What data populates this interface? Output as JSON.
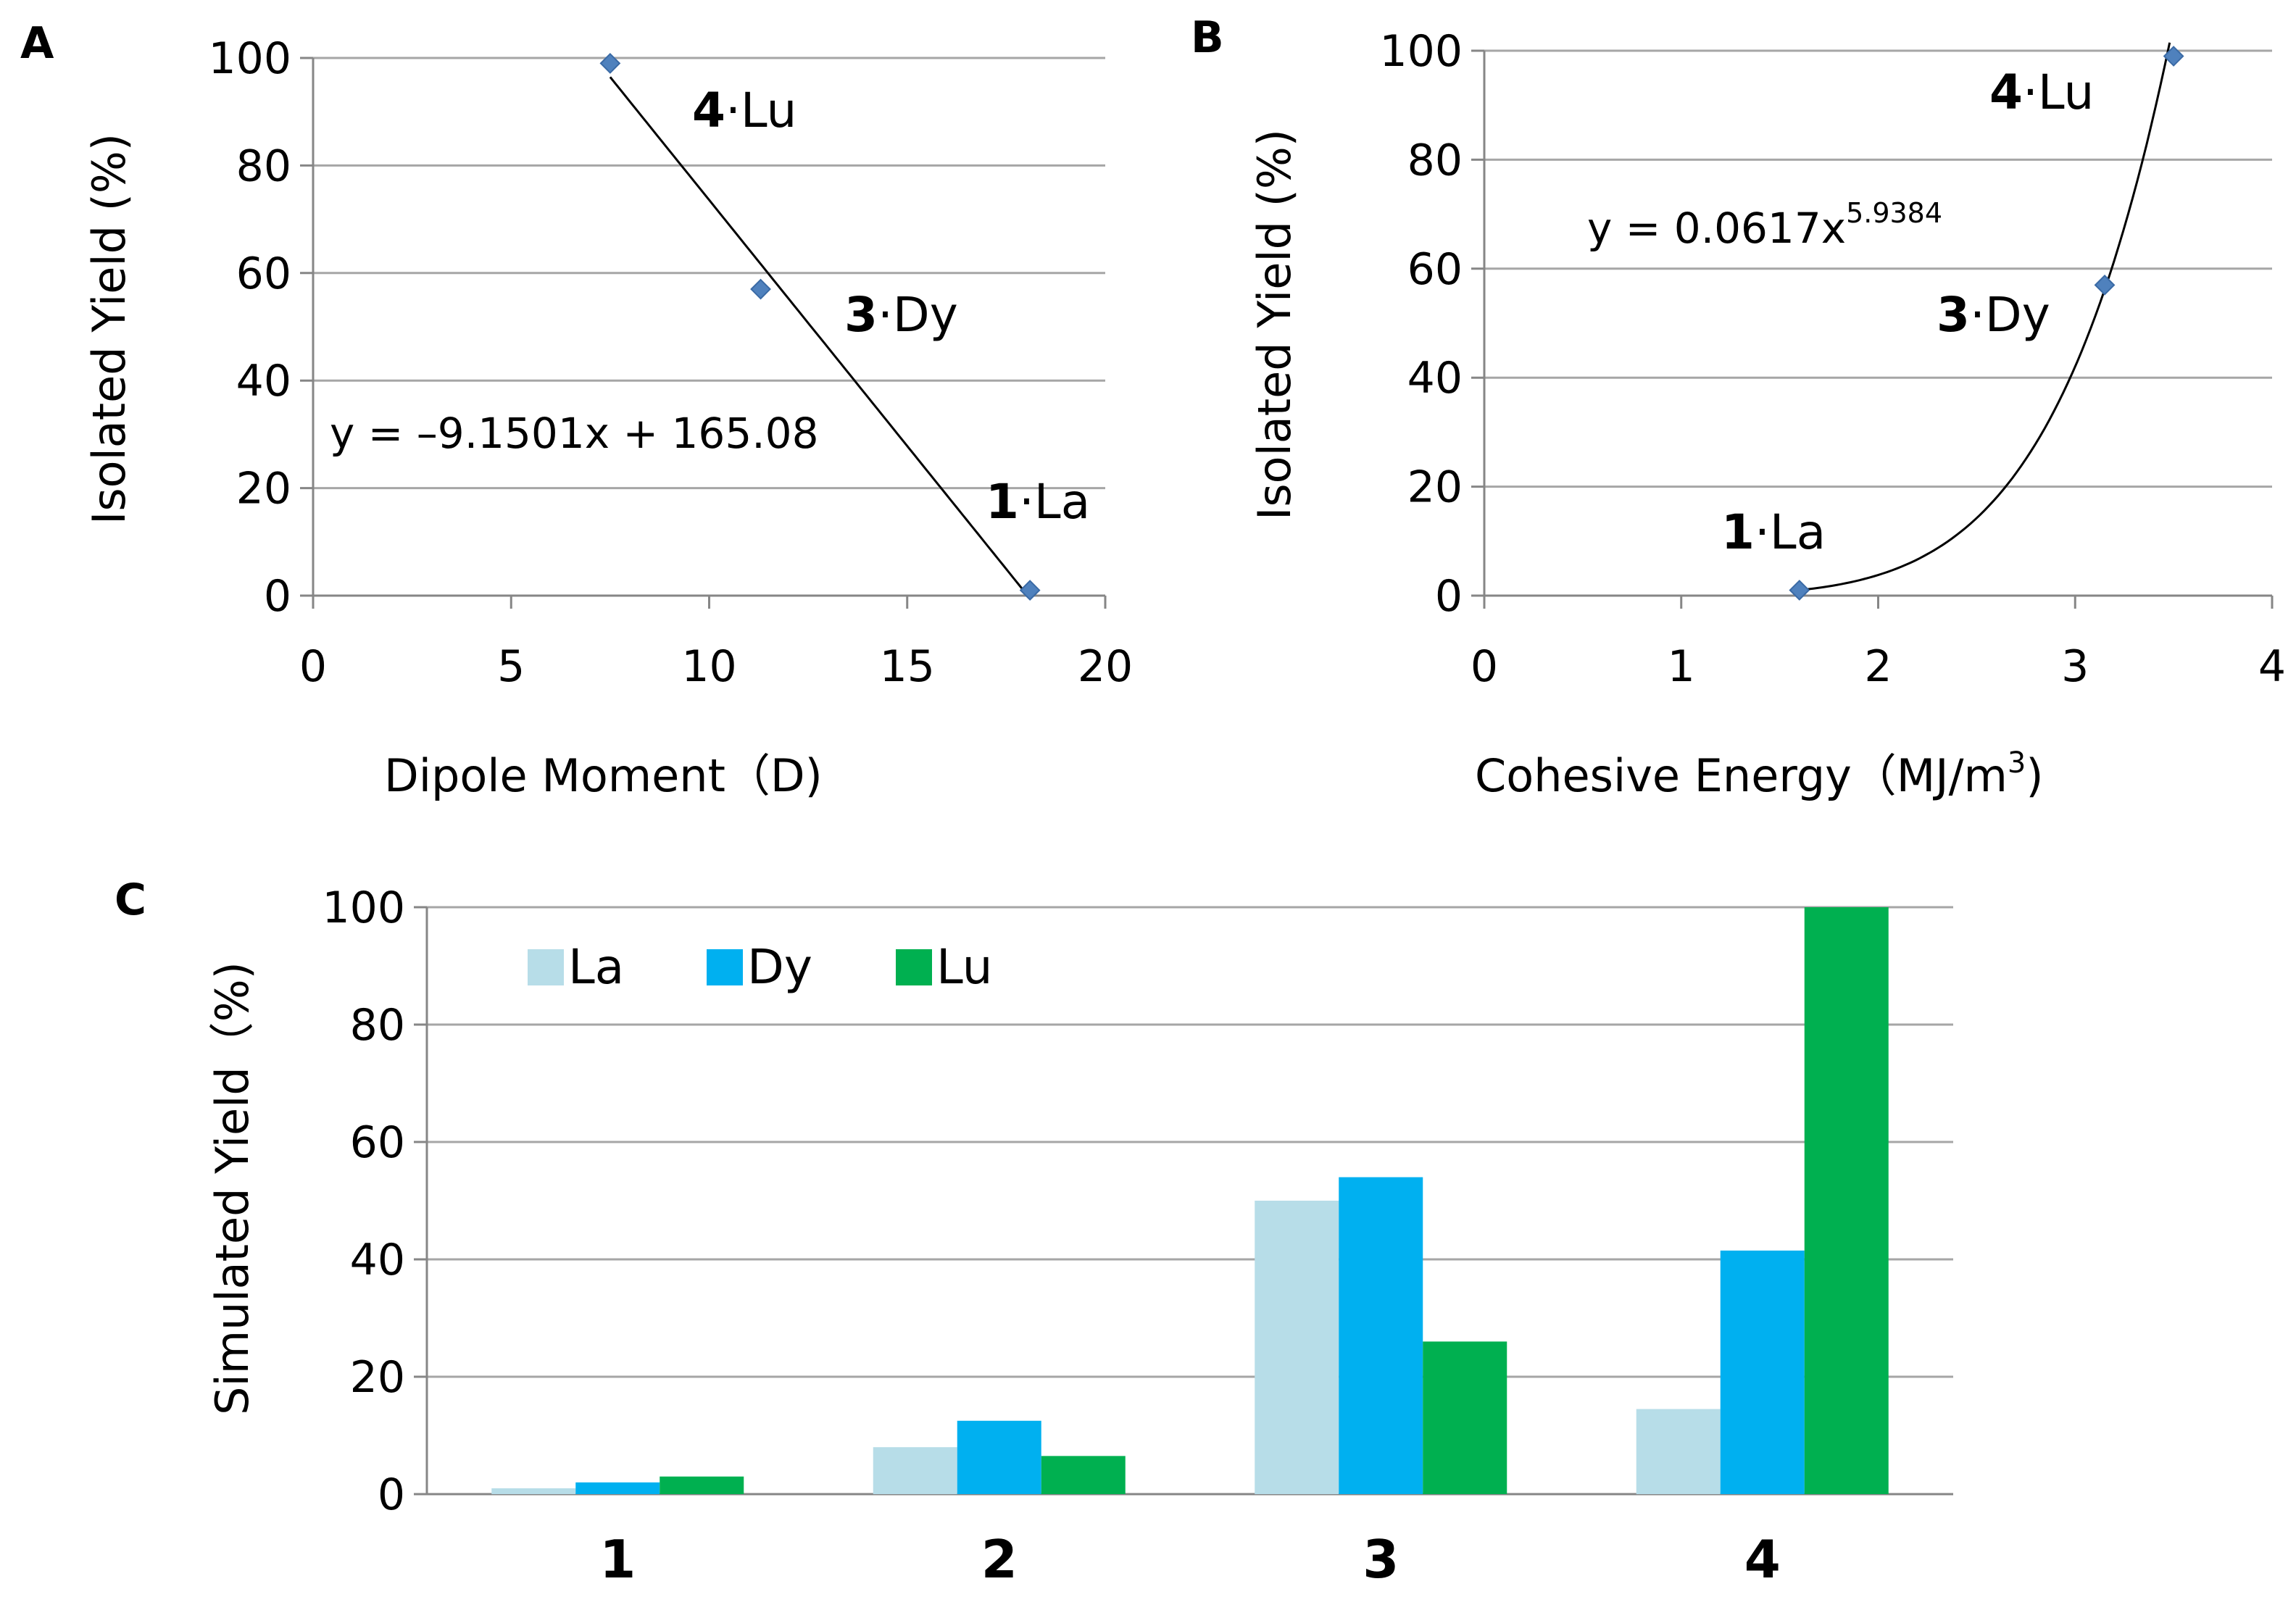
{
  "chart_data": [
    {
      "panel": "A",
      "type": "scatter",
      "xlabel": "Dipole Moment（D)",
      "ylabel": "Isolated Yield (%)",
      "xlim": [
        0,
        20
      ],
      "ylim": [
        0,
        100
      ],
      "xticks": [
        "0",
        "5",
        "10",
        "15",
        "20"
      ],
      "yticks": [
        "0",
        "20",
        "40",
        "60",
        "80",
        "100"
      ],
      "grid": true,
      "points": [
        {
          "x": 7.5,
          "y": 99,
          "label_num": "4",
          "label_el": "·Lu"
        },
        {
          "x": 11.3,
          "y": 57,
          "label_num": "3",
          "label_el": "·Dy"
        },
        {
          "x": 18.1,
          "y": 1,
          "label_num": "1",
          "label_el": "·La"
        }
      ],
      "fit": {
        "type": "linear",
        "slope": -9.1501,
        "intercept": 165.08,
        "x_range": [
          7.5,
          18.1
        ]
      },
      "equation": "y = –9.1501x + 165.08"
    },
    {
      "panel": "B",
      "type": "scatter",
      "xlabel": "Cohesive Energy（MJ/m",
      "xlabel_sup": "3",
      "xlabel_end": ")",
      "ylabel": "Isolated Yield (%)",
      "xlim": [
        0,
        4
      ],
      "ylim": [
        0,
        100
      ],
      "xticks": [
        "0",
        "1",
        "2",
        "3",
        "4"
      ],
      "yticks": [
        "0",
        "20",
        "40",
        "60",
        "80",
        "100"
      ],
      "grid": true,
      "points": [
        {
          "x": 1.6,
          "y": 1,
          "label_num": "1",
          "label_el": "·La"
        },
        {
          "x": 3.15,
          "y": 57,
          "label_num": "3",
          "label_el": "·Dy"
        },
        {
          "x": 3.5,
          "y": 99,
          "label_num": "4",
          "label_el": "·Lu"
        }
      ],
      "fit": {
        "type": "power",
        "coef": 0.0617,
        "exp": 5.9384,
        "x_range": [
          1.6,
          3.48
        ]
      },
      "equation": "y = 0.0617x",
      "equation_sup": "5.9384"
    },
    {
      "panel": "C",
      "type": "bar",
      "ylabel": "Simulated Yield（%)",
      "ylim": [
        0,
        100
      ],
      "yticks": [
        "0",
        "20",
        "40",
        "60",
        "80",
        "100"
      ],
      "grid": true,
      "legend_position": "top-left",
      "categories": [
        "1",
        "2",
        "3",
        "4"
      ],
      "series": [
        {
          "name": "La",
          "color": "#b7dde8",
          "values": [
            1,
            8,
            50,
            14.5
          ]
        },
        {
          "name": "Dy",
          "color": "#00b0f0",
          "values": [
            2,
            12.5,
            54,
            41.5
          ]
        },
        {
          "name": "Lu",
          "color": "#00b050",
          "values": [
            3,
            6.5,
            26,
            100
          ]
        }
      ]
    }
  ],
  "panel_labels": [
    "A",
    "B",
    "C"
  ],
  "colors": {
    "marker": "#4f81bd",
    "grid": "#a6a6a6",
    "axis": "#868686",
    "text": "#000000"
  }
}
